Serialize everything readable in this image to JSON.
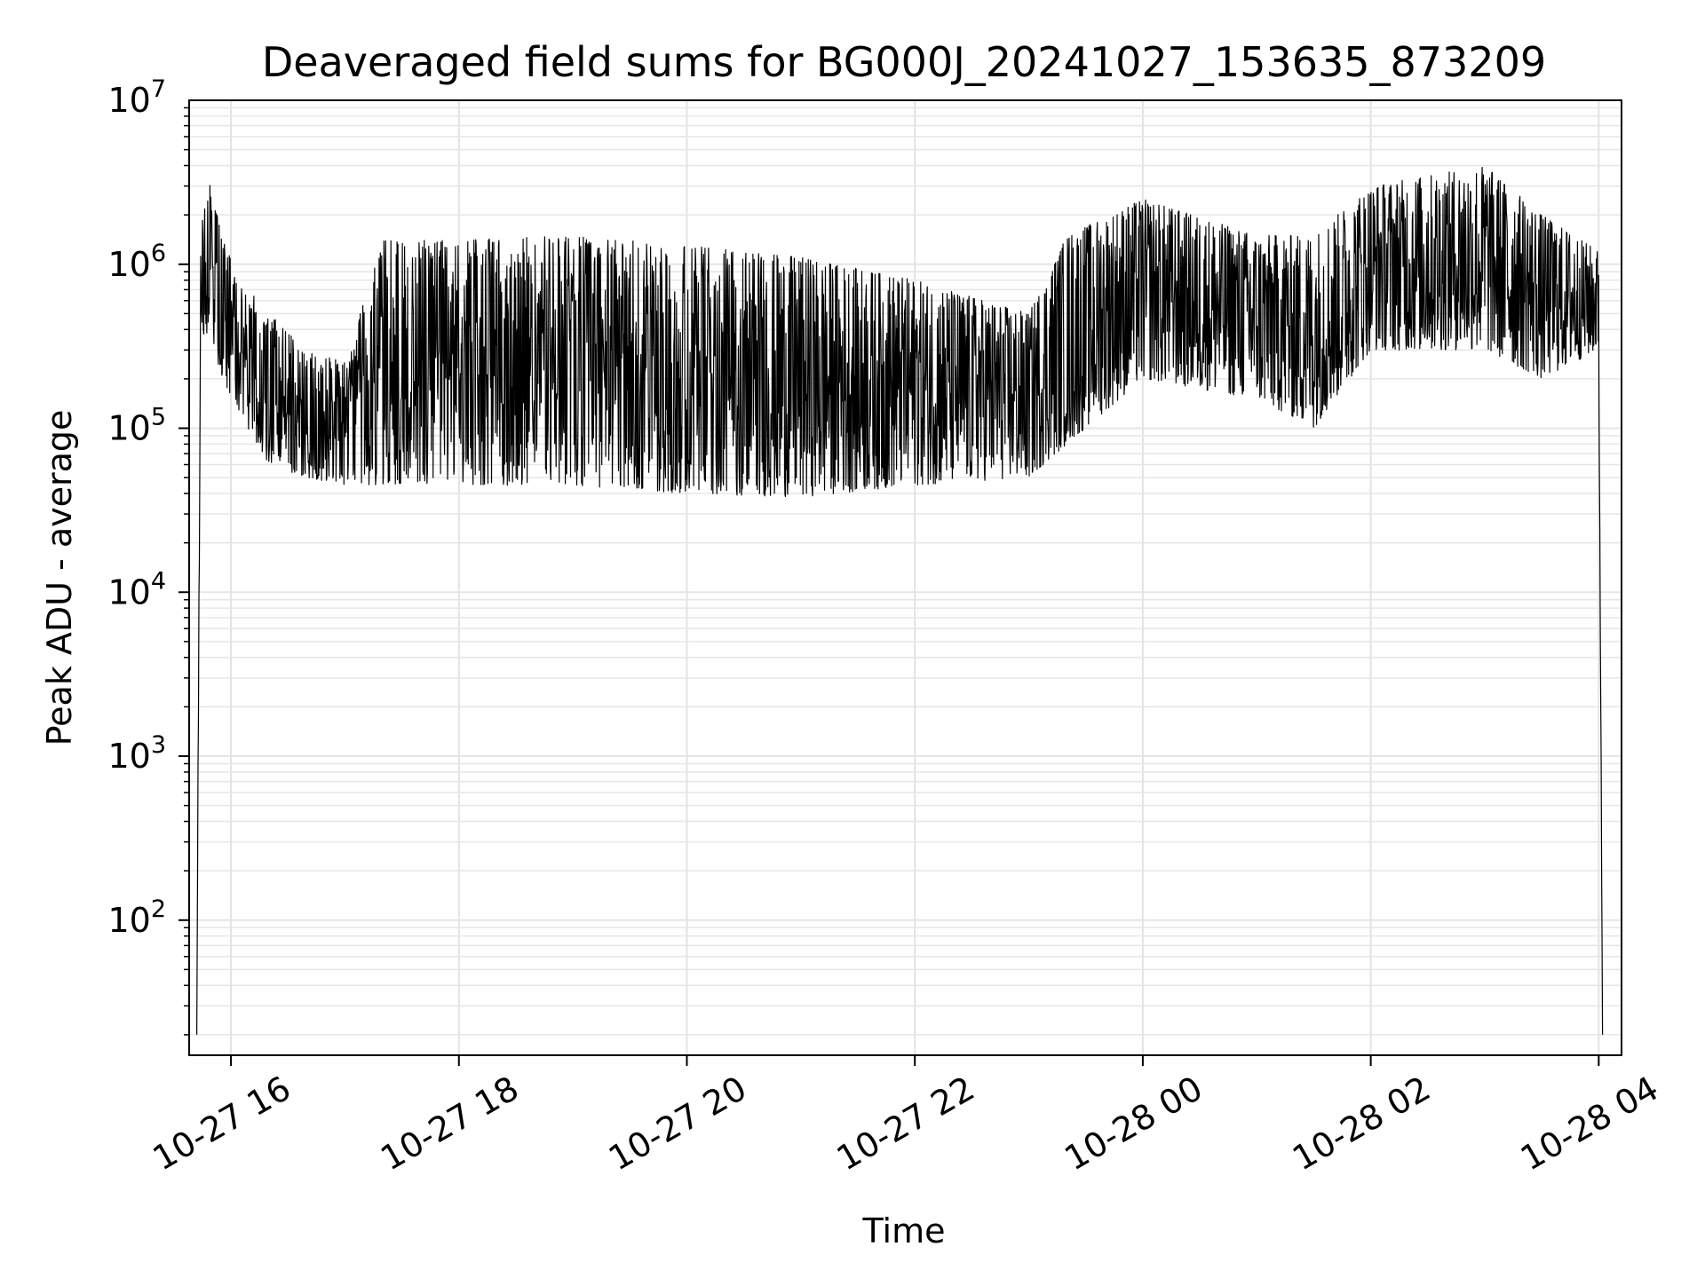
{
  "chart_data": {
    "type": "line",
    "title": "Deaveraged field sums for BG000J_20241027_153635_873209",
    "xlabel": "Time",
    "ylabel": "Peak ADU - average",
    "yscale": "log",
    "ylim": [
      15,
      10000000
    ],
    "xlim": [
      "2024-10-27 15:38",
      "2024-10-28 04:12"
    ],
    "grid": true,
    "series_color": "#000000",
    "x_ticks": [
      {
        "value": "2024-10-27 16:00",
        "label": "10-27 16"
      },
      {
        "value": "2024-10-27 18:00",
        "label": "10-27 18"
      },
      {
        "value": "2024-10-27 20:00",
        "label": "10-27 20"
      },
      {
        "value": "2024-10-27 22:00",
        "label": "10-27 22"
      },
      {
        "value": "2024-10-28 00:00",
        "label": "10-28 00"
      },
      {
        "value": "2024-10-28 02:00",
        "label": "10-28 02"
      },
      {
        "value": "2024-10-28 04:00",
        "label": "10-28 04"
      }
    ],
    "y_ticks": [
      {
        "value": 100,
        "base": "10",
        "exp": "2"
      },
      {
        "value": 1000,
        "base": "10",
        "exp": "3"
      },
      {
        "value": 10000,
        "base": "10",
        "exp": "4"
      },
      {
        "value": 100000,
        "base": "10",
        "exp": "5"
      },
      {
        "value": 1000000,
        "base": "10",
        "exp": "6"
      },
      {
        "value": 10000000,
        "base": "10",
        "exp": "7"
      }
    ],
    "series": [
      {
        "envelope": [
          {
            "t": "2024-10-27 15:42",
            "low": 20,
            "high": 20
          },
          {
            "t": "2024-10-27 15:44",
            "low": 300000,
            "high": 1500000
          },
          {
            "t": "2024-10-27 15:48",
            "low": 400000,
            "high": 3500000
          },
          {
            "t": "2024-10-27 15:55",
            "low": 200000,
            "high": 1500000
          },
          {
            "t": "2024-10-27 16:05",
            "low": 120000,
            "high": 800000
          },
          {
            "t": "2024-10-27 16:20",
            "low": 60000,
            "high": 500000
          },
          {
            "t": "2024-10-27 16:40",
            "low": 50000,
            "high": 300000
          },
          {
            "t": "2024-10-27 17:00",
            "low": 45000,
            "high": 250000
          },
          {
            "t": "2024-10-27 17:20",
            "low": 45000,
            "high": 1400000
          },
          {
            "t": "2024-10-27 18:00",
            "low": 45000,
            "high": 1400000
          },
          {
            "t": "2024-10-27 19:00",
            "low": 45000,
            "high": 1500000
          },
          {
            "t": "2024-10-27 20:00",
            "low": 40000,
            "high": 1300000
          },
          {
            "t": "2024-10-27 21:00",
            "low": 38000,
            "high": 1100000
          },
          {
            "t": "2024-10-27 22:00",
            "low": 45000,
            "high": 800000
          },
          {
            "t": "2024-10-27 23:00",
            "low": 50000,
            "high": 500000
          },
          {
            "t": "2024-10-27 23:20",
            "low": 80000,
            "high": 1500000
          },
          {
            "t": "2024-10-28 00:00",
            "low": 200000,
            "high": 2500000
          },
          {
            "t": "2024-10-28 01:00",
            "low": 150000,
            "high": 1500000
          },
          {
            "t": "2024-10-28 01:30",
            "low": 100000,
            "high": 1500000
          },
          {
            "t": "2024-10-28 02:00",
            "low": 300000,
            "high": 3000000
          },
          {
            "t": "2024-10-28 03:00",
            "low": 300000,
            "high": 4000000
          },
          {
            "t": "2024-10-28 03:30",
            "low": 200000,
            "high": 2000000
          },
          {
            "t": "2024-10-28 04:00",
            "low": 300000,
            "high": 1200000
          },
          {
            "t": "2024-10-28 04:02",
            "low": 20,
            "high": 20
          }
        ]
      }
    ]
  }
}
